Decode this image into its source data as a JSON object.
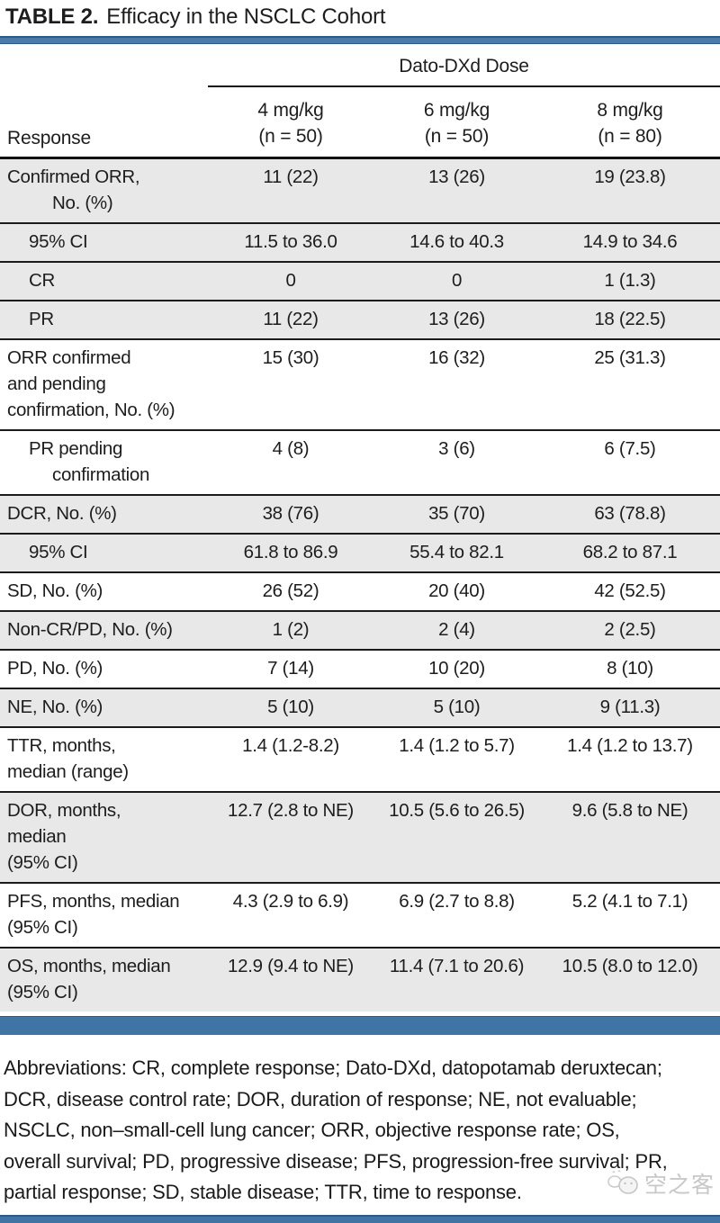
{
  "title": {
    "label": "TABLE 2.",
    "text": "Efficacy in the NSCLC Cohort"
  },
  "colors": {
    "accent_blue": "#3f74a5",
    "row_shade": "#e8e8e8"
  },
  "table": {
    "group_header": "Dato-DXd Dose",
    "response_header": "Response",
    "columns": [
      {
        "line1": "4 mg/kg",
        "line2": "(n = 50)"
      },
      {
        "line1": "6 mg/kg",
        "line2": "(n = 50)"
      },
      {
        "line1": "8 mg/kg",
        "line2": "(n = 80)"
      }
    ],
    "rows": [
      {
        "label_lines": [
          "Confirmed ORR,",
          "No. (%)"
        ],
        "indent": false,
        "cont_indent": true,
        "shaded": true,
        "values": [
          "11 (22)",
          "13 (26)",
          "19 (23.8)"
        ]
      },
      {
        "label_lines": [
          "95% CI"
        ],
        "indent": true,
        "cont_indent": false,
        "shaded": true,
        "values": [
          "11.5 to 36.0",
          "14.6 to 40.3",
          "14.9 to 34.6"
        ]
      },
      {
        "label_lines": [
          "CR"
        ],
        "indent": true,
        "cont_indent": false,
        "shaded": true,
        "values": [
          "0",
          "0",
          "1 (1.3)"
        ]
      },
      {
        "label_lines": [
          "PR"
        ],
        "indent": true,
        "cont_indent": false,
        "shaded": true,
        "values": [
          "11 (22)",
          "13 (26)",
          "18 (22.5)"
        ]
      },
      {
        "label_lines": [
          "ORR confirmed",
          "and pending",
          "confirmation, No. (%)"
        ],
        "indent": false,
        "cont_indent": false,
        "shaded": false,
        "values": [
          "15 (30)",
          "16 (32)",
          "25 (31.3)"
        ]
      },
      {
        "label_lines": [
          "PR pending",
          "confirmation"
        ],
        "indent": true,
        "cont_indent": true,
        "shaded": false,
        "values": [
          "4 (8)",
          "3 (6)",
          "6 (7.5)"
        ]
      },
      {
        "label_lines": [
          "DCR, No. (%)"
        ],
        "indent": false,
        "cont_indent": false,
        "shaded": true,
        "values": [
          "38 (76)",
          "35 (70)",
          "63 (78.8)"
        ]
      },
      {
        "label_lines": [
          "95% CI"
        ],
        "indent": true,
        "cont_indent": false,
        "shaded": true,
        "values": [
          "61.8 to 86.9",
          "55.4 to 82.1",
          "68.2 to 87.1"
        ]
      },
      {
        "label_lines": [
          "SD, No. (%)"
        ],
        "indent": false,
        "cont_indent": false,
        "shaded": false,
        "values": [
          "26 (52)",
          "20 (40)",
          "42 (52.5)"
        ]
      },
      {
        "label_lines": [
          "Non-CR/PD, No. (%)"
        ],
        "indent": false,
        "cont_indent": false,
        "shaded": true,
        "values": [
          "1 (2)",
          "2 (4)",
          "2 (2.5)"
        ]
      },
      {
        "label_lines": [
          "PD, No. (%)"
        ],
        "indent": false,
        "cont_indent": false,
        "shaded": false,
        "values": [
          "7 (14)",
          "10 (20)",
          "8 (10)"
        ]
      },
      {
        "label_lines": [
          "NE, No. (%)"
        ],
        "indent": false,
        "cont_indent": false,
        "shaded": true,
        "values": [
          "5 (10)",
          "5 (10)",
          "9 (11.3)"
        ]
      },
      {
        "label_lines": [
          "TTR, months,",
          "median (range)"
        ],
        "indent": false,
        "cont_indent": false,
        "shaded": false,
        "values": [
          "1.4 (1.2-8.2)",
          "1.4 (1.2 to 5.7)",
          "1.4 (1.2 to 13.7)"
        ]
      },
      {
        "label_lines": [
          "DOR, months,",
          "median",
          "(95% CI)"
        ],
        "indent": false,
        "cont_indent": false,
        "shaded": true,
        "values": [
          "12.7 (2.8 to NE)",
          "10.5 (5.6 to 26.5)",
          "9.6 (5.8 to NE)"
        ]
      },
      {
        "label_lines": [
          "PFS, months, median",
          "(95% CI)"
        ],
        "indent": false,
        "cont_indent": false,
        "shaded": false,
        "values": [
          "4.3 (2.9 to 6.9)",
          "6.9 (2.7 to 8.8)",
          "5.2 (4.1 to 7.1)"
        ]
      },
      {
        "label_lines": [
          "OS, months, median",
          "(95% CI)"
        ],
        "indent": false,
        "cont_indent": false,
        "shaded": true,
        "values": [
          "12.9 (9.4 to NE)",
          "11.4 (7.1 to 20.6)",
          "10.5 (8.0 to 12.0)"
        ]
      }
    ]
  },
  "footer": {
    "abbreviations": "Abbreviations: CR, complete response; Dato-DXd, datopotamab deruxtecan; DCR, disease control rate; DOR, duration of response; NE, not evaluable; NSCLC, non–small-cell lung cancer; ORR, objective response rate; OS, overall survival; PD, progressive disease; PFS, progression-free survival; PR, partial response; SD, stable disease; TTR, time to response."
  },
  "watermark": {
    "text": "空之客"
  }
}
